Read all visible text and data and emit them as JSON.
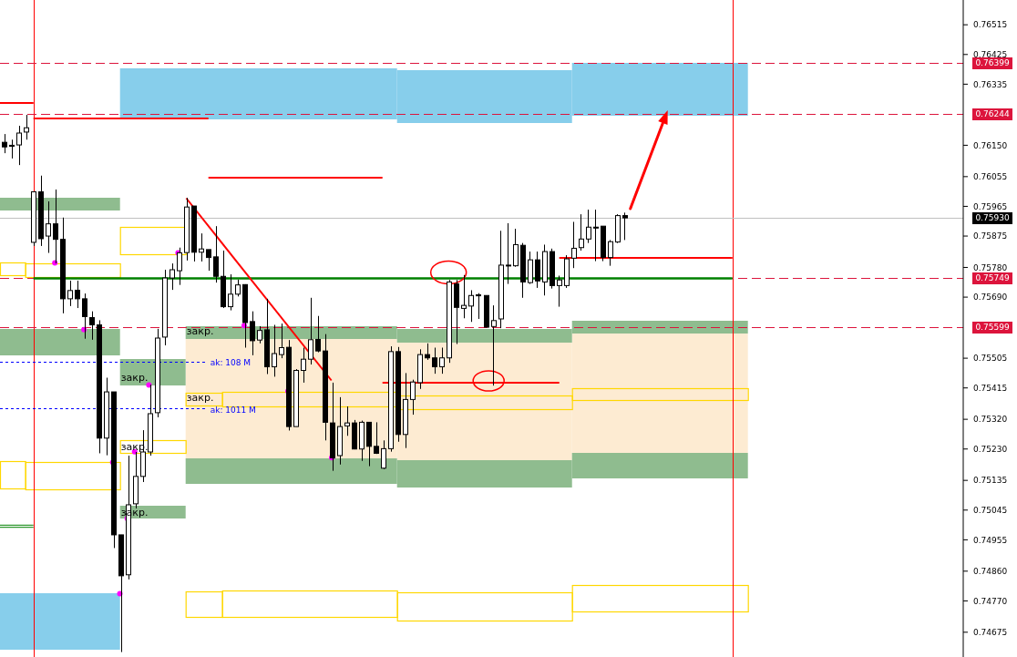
{
  "chart_data": {
    "type": "candlestick",
    "color": "#000000",
    "categories": [
      null,
      null,
      null,
      null,
      null,
      null,
      null,
      null,
      null,
      null,
      null,
      null,
      null,
      null,
      null,
      null,
      null,
      null,
      null,
      null,
      null,
      null,
      null,
      null,
      null,
      null,
      null,
      null,
      null,
      null,
      null,
      null,
      null,
      null,
      null,
      null,
      null,
      null,
      null,
      null,
      null,
      null,
      null,
      null,
      null,
      null,
      null,
      null,
      null,
      null,
      null,
      null,
      null,
      null,
      null,
      null,
      null,
      null,
      null,
      null,
      null,
      null,
      null,
      null,
      null,
      null,
      null,
      null,
      null,
      null,
      null,
      null,
      null,
      null,
      null,
      null,
      null,
      null,
      null,
      null,
      null,
      null,
      null,
      null,
      null,
      null,
      null,
      null,
      null,
      null,
      null,
      null,
      null,
      null,
      null,
      null,
      null,
      null,
      null,
      null,
      null,
      null,
      null,
      null,
      null,
      null,
      null,
      null,
      null,
      null,
      null,
      null,
      null,
      null,
      null,
      null,
      null,
      null,
      null,
      null,
      null,
      null,
      null,
      null,
      null,
      null,
      null,
      null,
      null,
      null,
      null,
      null
    ],
    "ohlc": [
      [
        0.76159,
        0.76184,
        0.76126,
        0.76145
      ],
      [
        0.76147,
        0.76167,
        0.7611,
        0.7615
      ],
      [
        0.76151,
        0.76209,
        0.7609,
        0.76187
      ],
      [
        0.7619,
        0.76242,
        0.76167,
        0.76203
      ],
      [
        0.75856,
        0.7601,
        0.75845,
        0.76009
      ],
      [
        0.76009,
        0.76058,
        0.75845,
        0.75867
      ],
      [
        0.75875,
        0.7598,
        0.75824,
        0.75912
      ],
      [
        0.75912,
        0.76016,
        0.75792,
        0.75865
      ],
      [
        0.75865,
        0.75931,
        0.75641,
        0.75685
      ],
      [
        0.75685,
        0.7574,
        0.75663,
        0.7571
      ],
      [
        0.75711,
        0.7574,
        0.75657,
        0.75685
      ],
      [
        0.75685,
        0.75701,
        0.75564,
        0.75631
      ],
      [
        0.75628,
        0.75647,
        0.75561,
        0.75606
      ],
      [
        0.75606,
        0.7562,
        0.75217,
        0.75263
      ],
      [
        0.75263,
        0.75446,
        0.75211,
        0.75403
      ],
      [
        0.75403,
        0.75403,
        0.7493,
        0.7497
      ],
      [
        0.7497,
        0.7497,
        0.74615,
        0.74846
      ],
      [
        0.74849,
        0.7521,
        0.74835,
        0.75061
      ],
      [
        0.75064,
        0.75221,
        0.7505,
        0.75147
      ],
      [
        0.75147,
        0.75287,
        0.7513,
        0.75221
      ],
      [
        0.75221,
        0.75425,
        0.7521,
        0.75337
      ],
      [
        0.7534,
        0.75594,
        0.75326,
        0.75566
      ],
      [
        0.75569,
        0.75773,
        0.75544,
        0.75748
      ],
      [
        0.75748,
        0.75792,
        0.75712,
        0.75773
      ],
      [
        0.7577,
        0.7584,
        0.75727,
        0.75824
      ],
      [
        0.75825,
        0.75991,
        0.75801,
        0.75963
      ],
      [
        0.75966,
        0.75966,
        0.75798,
        0.75826
      ],
      [
        0.75826,
        0.75883,
        0.75798,
        0.75836
      ],
      [
        0.75834,
        0.75834,
        0.7577,
        0.7581
      ],
      [
        0.75812,
        0.75905,
        0.75734,
        0.75753
      ],
      [
        0.75753,
        0.75831,
        0.75657,
        0.75661
      ],
      [
        0.75661,
        0.75759,
        0.7565,
        0.75699
      ],
      [
        0.75699,
        0.75743,
        0.75692,
        0.75727
      ],
      [
        0.75728,
        0.75729,
        0.75537,
        0.75613
      ],
      [
        0.75616,
        0.75647,
        0.75514,
        0.75558
      ],
      [
        0.7556,
        0.75602,
        0.7555,
        0.75589
      ],
      [
        0.75591,
        0.75685,
        0.75457,
        0.75479
      ],
      [
        0.75479,
        0.75606,
        0.75449,
        0.75519
      ],
      [
        0.75516,
        0.7561,
        0.75505,
        0.75537
      ],
      [
        0.75538,
        0.7556,
        0.75286,
        0.75298
      ],
      [
        0.75298,
        0.75472,
        0.75298,
        0.75468
      ],
      [
        0.75468,
        0.75537,
        0.75431,
        0.75502
      ],
      [
        0.75502,
        0.75688,
        0.75486,
        0.75561
      ],
      [
        0.75562,
        0.75633,
        0.75523,
        0.75527
      ],
      [
        0.75527,
        0.75578,
        0.75256,
        0.75311
      ],
      [
        0.75309,
        0.75431,
        0.75164,
        0.75203
      ],
      [
        0.7521,
        0.75387,
        0.75183,
        0.75298
      ],
      [
        0.753,
        0.75359,
        0.7527,
        0.75309
      ],
      [
        0.75309,
        0.75318,
        0.75229,
        0.7523
      ],
      [
        0.7523,
        0.75316,
        0.75194,
        0.75311
      ],
      [
        0.75311,
        0.75311,
        0.75178,
        0.75238
      ],
      [
        0.75238,
        0.75311,
        0.75215,
        0.75217
      ],
      [
        0.75172,
        0.75256,
        0.75169,
        0.75231
      ],
      [
        0.75231,
        0.75541,
        0.75222,
        0.75525
      ],
      [
        0.75525,
        0.75539,
        0.75252,
        0.75274
      ],
      [
        0.75274,
        0.7546,
        0.75233,
        0.7538
      ],
      [
        0.7538,
        0.7544,
        0.75334,
        0.75433
      ],
      [
        0.75431,
        0.75532,
        0.75412,
        0.75516
      ],
      [
        0.75516,
        0.7555,
        0.755,
        0.75506
      ],
      [
        0.75506,
        0.75537,
        0.75458,
        0.75479
      ],
      [
        0.75479,
        0.75537,
        0.75458,
        0.75506
      ],
      [
        0.75506,
        0.75742,
        0.75491,
        0.75736
      ],
      [
        0.7573,
        0.75742,
        0.75548,
        0.75659
      ],
      [
        0.75656,
        0.75757,
        0.75626,
        0.75665
      ],
      [
        0.75663,
        0.75711,
        0.75615,
        0.75695
      ],
      [
        0.75697,
        0.75702,
        0.75624,
        0.75694
      ],
      [
        0.75695,
        0.75695,
        0.75599,
        0.75599
      ],
      [
        0.75601,
        0.75665,
        0.75422,
        0.75619
      ],
      [
        0.75624,
        0.75891,
        0.75596,
        0.75787
      ],
      [
        0.75787,
        0.75914,
        0.7573,
        0.75787
      ],
      [
        0.75785,
        0.75897,
        0.75782,
        0.75849
      ],
      [
        0.75847,
        0.75854,
        0.75688,
        0.75736
      ],
      [
        0.75734,
        0.75828,
        0.7573,
        0.75803
      ],
      [
        0.75803,
        0.75828,
        0.75718,
        0.75739
      ],
      [
        0.75736,
        0.75849,
        0.75695,
        0.75828
      ],
      [
        0.75828,
        0.75837,
        0.75716,
        0.75725
      ],
      [
        0.75725,
        0.75755,
        0.75661,
        0.75742
      ],
      [
        0.75725,
        0.75817,
        0.75718,
        0.75806
      ],
      [
        0.75808,
        0.75918,
        0.75778,
        0.75838
      ],
      [
        0.7584,
        0.75941,
        0.75831,
        0.75866
      ],
      [
        0.75866,
        0.75955,
        0.75854,
        0.75902
      ],
      [
        0.75902,
        0.75955,
        0.75799,
        0.75902
      ],
      [
        0.75905,
        0.75905,
        0.75799,
        0.7581
      ],
      [
        0.7581,
        0.75863,
        0.75785,
        0.75858
      ],
      [
        0.75857,
        0.75941,
        0.75854,
        0.75937
      ],
      [
        0.75937,
        0.75946,
        0.75863,
        0.7593
      ],
      null,
      null,
      null,
      null,
      null,
      null,
      null,
      null,
      null,
      null,
      null,
      null,
      null,
      null,
      null,
      null,
      null,
      null,
      null,
      null,
      null,
      null,
      null,
      null,
      null,
      null,
      null,
      null,
      null,
      null,
      null,
      null,
      null,
      null,
      null,
      null,
      null,
      null,
      null,
      null,
      null,
      null,
      null,
      null,
      null,
      null
    ],
    "ylim": [
      0.746,
      0.7659
    ],
    "yticks": [
      0.76515,
      0.76425,
      0.76335,
      {
        "value": 0.7615,
        "label": "0.76150"
      },
      0.76055,
      0.75965,
      0.75875,
      {
        "value": 0.7578,
        "label": "0.75780"
      },
      {
        "value": 0.7569,
        "label": "0.75690"
      },
      0.75505,
      0.75415,
      {
        "value": 0.7532,
        "label": "0.75320"
      },
      {
        "value": 0.7523,
        "label": "0.75230"
      },
      0.75135,
      0.75045,
      0.74955,
      {
        "value": 0.7486,
        "label": "0.74860"
      },
      {
        "value": 0.7477,
        "label": "0.74770"
      },
      0.74675
    ],
    "tick_labels": "y",
    "ref_lines": [
      {
        "axis": "y",
        "value": 0.76399,
        "label": "0.76399",
        "color": "#dc143c",
        "line_style": "dashed"
      },
      {
        "axis": "y",
        "value": 0.76244,
        "label": "0.76244",
        "color": "#dc143c",
        "line_style": "dashed"
      },
      {
        "axis": "y",
        "value": 0.7593,
        "label": "0.75930",
        "color": "#c0c0c0",
        "line_style": "solid"
      },
      {
        "axis": "y",
        "value": 0.75749,
        "label": "0.75749",
        "color": "#dc143c",
        "line_style": "dashed"
      },
      {
        "axis": "y",
        "value": 0.75599,
        "label": "0.75599",
        "color": "#dc143c",
        "line_style": "dashed"
      },
      {
        "axis": "y",
        "value": 0.75749,
        "color": "#008000",
        "line_style": "solid"
      },
      {
        "axis": "y",
        "value": 0.75494,
        "color": "#0000ff",
        "line_style": "dotted"
      },
      {
        "axis": "y",
        "value": 0.75353,
        "color": "#0000ff",
        "line_style": "dotted"
      }
    ],
    "annotations": [
      "закр.",
      "закр.",
      "закр.",
      "закр.",
      "закр.",
      "ak: 108 M",
      "ak: 1011 M"
    ]
  }
}
